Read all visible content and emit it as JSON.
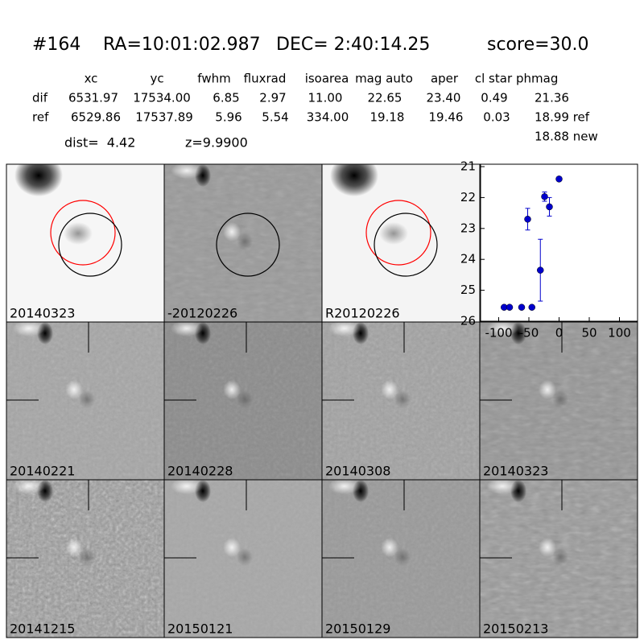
{
  "header": {
    "id": "#164",
    "ra": "RA=10:01:02.987",
    "dec": "DEC= 2:40:14.25",
    "score": "score=30.0"
  },
  "table": {
    "columns": [
      "xc",
      "yc",
      "fwhm",
      "fluxrad",
      "isoarea",
      "mag auto",
      "aper",
      "cl star",
      "phmag"
    ],
    "rows": [
      [
        "dif",
        "6531.97",
        "17534.00",
        "6.85",
        "2.97",
        "11.00",
        "22.65",
        "23.40",
        "0.49",
        "21.36"
      ],
      [
        "ref",
        "6529.86",
        "17537.89",
        "5.96",
        "5.54",
        "334.00",
        "19.18",
        "19.46",
        "0.03",
        "18.99 ref"
      ]
    ],
    "new": "18.88 new"
  },
  "dist": "dist=  4.42",
  "z": "z=9.9900",
  "stamps": [
    {
      "label": "20140323"
    },
    {
      "label": "-20120226"
    },
    {
      "label": "R20120226"
    },
    {
      "label": "20140221"
    },
    {
      "label": "20140228"
    },
    {
      "label": "20140308"
    },
    {
      "label": "20140323",
      "color": "#ff0000"
    },
    {
      "label": "20141215"
    },
    {
      "label": "20150121"
    },
    {
      "label": "20150129"
    },
    {
      "label": "20150213"
    }
  ],
  "chart_data": {
    "type": "scatter",
    "x": [
      -91,
      -82,
      -62,
      -52,
      -45,
      -31,
      -24,
      -16,
      0
    ],
    "values": [
      25.55,
      25.55,
      25.55,
      22.7,
      25.55,
      24.35,
      21.97,
      22.3,
      21.4
    ],
    "errors": [
      null,
      null,
      null,
      0.35,
      null,
      1.0,
      0.15,
      0.3,
      0.07
    ],
    "color": "#0000cc",
    "xlim": [
      -130,
      130
    ],
    "xticks": [
      -100,
      -50,
      0,
      50,
      100
    ],
    "ylim": [
      26,
      21
    ],
    "yticks": [
      21,
      22,
      23,
      24,
      25,
      26
    ]
  }
}
